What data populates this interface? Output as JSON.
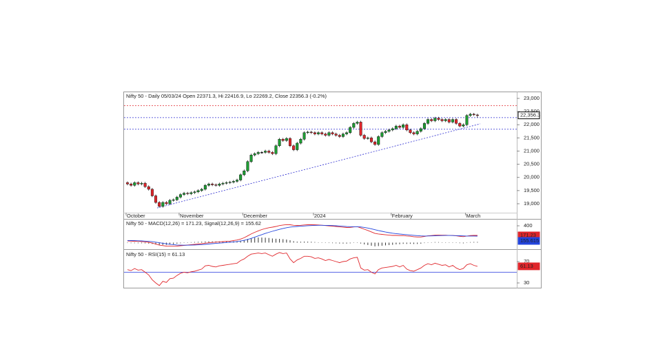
{
  "chart_data": [
    {
      "type": "candlestick",
      "title": "Nifty 50 - Daily 05/03/24 Open 22371.3, Hi 22416.9, Lo 22269.2, Close 22356.3 (-0.2%)",
      "categories": [
        "October",
        null,
        null,
        null,
        null,
        null,
        null,
        null,
        null,
        null,
        null,
        null,
        null,
        null,
        null,
        "November",
        null,
        null,
        null,
        null,
        null,
        null,
        null,
        null,
        null,
        null,
        null,
        null,
        null,
        null,
        null,
        null,
        null,
        "December",
        null,
        null,
        null,
        null,
        null,
        null,
        null,
        null,
        null,
        null,
        null,
        null,
        null,
        null,
        null,
        null,
        null,
        null,
        null,
        "2024",
        null,
        null,
        null,
        null,
        null,
        null,
        null,
        null,
        null,
        null,
        null,
        null,
        null,
        null,
        null,
        null,
        null,
        null,
        null,
        null,
        null,
        "February",
        null,
        null,
        null,
        null,
        null,
        null,
        null,
        null,
        null,
        null,
        null,
        null,
        null,
        null,
        null,
        null,
        null,
        null,
        null,
        null,
        "March",
        null,
        null,
        null
      ],
      "open": [
        19800,
        19750,
        19700,
        19800,
        19750,
        19780,
        19650,
        19550,
        19300,
        19050,
        18900,
        19050,
        19000,
        19130,
        19150,
        19250,
        19350,
        19400,
        19380,
        19420,
        19450,
        19500,
        19550,
        19700,
        19750,
        19720,
        19700,
        19750,
        19780,
        19800,
        19820,
        19850,
        19900,
        20100,
        20250,
        20600,
        20850,
        20900,
        20950,
        20950,
        21000,
        20950,
        20900,
        21200,
        21450,
        21400,
        21480,
        21200,
        21050,
        21300,
        21450,
        21700,
        21720,
        21700,
        21650,
        21700,
        21650,
        21600,
        21700,
        21650,
        21600,
        21550,
        21650,
        21700,
        21900,
        22050,
        22100,
        21600,
        21480,
        21500,
        21350,
        21250,
        21550,
        21700,
        21750,
        21800,
        21850,
        21950,
        21900,
        22000,
        21800,
        21700,
        21650,
        21750,
        21850,
        22050,
        22200,
        22150,
        22250,
        22200,
        22150,
        22200,
        22100,
        22200,
        22050,
        21950,
        22000,
        22350,
        22400,
        22371.3
      ],
      "high": [
        19850,
        19800,
        19850,
        19850,
        19830,
        19830,
        19700,
        19600,
        19350,
        19100,
        19100,
        19100,
        19180,
        19200,
        19300,
        19400,
        19450,
        19450,
        19470,
        19500,
        19550,
        19600,
        19750,
        19800,
        19800,
        19770,
        19800,
        19830,
        19850,
        19870,
        19900,
        19950,
        20150,
        20300,
        20650,
        20900,
        20950,
        21000,
        21000,
        21050,
        21050,
        21000,
        21250,
        21500,
        21500,
        21530,
        21530,
        21250,
        21350,
        21500,
        21750,
        21770,
        21770,
        21750,
        21750,
        21750,
        21700,
        21750,
        21750,
        21700,
        21650,
        21700,
        21750,
        21950,
        22100,
        22150,
        22150,
        21650,
        21550,
        21550,
        21400,
        21600,
        21750,
        21800,
        21850,
        21900,
        22000,
        22000,
        22050,
        22050,
        21850,
        21750,
        21800,
        21900,
        22100,
        22250,
        22250,
        22300,
        22300,
        22250,
        22250,
        22250,
        22250,
        22250,
        22100,
        22050,
        22400,
        22450,
        22450,
        22416.9
      ],
      "low": [
        19700,
        19650,
        19650,
        19700,
        19700,
        19600,
        19500,
        19250,
        19000,
        18850,
        18850,
        18950,
        18950,
        19080,
        19100,
        19200,
        19300,
        19330,
        19330,
        19370,
        19400,
        19450,
        19500,
        19650,
        19670,
        19650,
        19650,
        19700,
        19730,
        19750,
        19770,
        19800,
        19850,
        20050,
        20200,
        20550,
        20800,
        20850,
        20900,
        20900,
        20900,
        20850,
        20850,
        21150,
        21350,
        21350,
        21150,
        21000,
        21000,
        21250,
        21400,
        21650,
        21650,
        21600,
        21600,
        21600,
        21550,
        21550,
        21600,
        21550,
        21500,
        21500,
        21600,
        21650,
        21850,
        22000,
        21550,
        21430,
        21430,
        21300,
        21200,
        21200,
        21500,
        21650,
        21700,
        21750,
        21800,
        21850,
        21850,
        21750,
        21650,
        21600,
        21600,
        21700,
        21800,
        22000,
        22100,
        22100,
        22150,
        22100,
        22100,
        22050,
        22050,
        22000,
        21900,
        21900,
        21950,
        22300,
        22330,
        22269.2
      ],
      "close": [
        19750,
        19700,
        19800,
        19750,
        19780,
        19650,
        19550,
        19300,
        19050,
        18900,
        19050,
        19000,
        19130,
        19150,
        19250,
        19350,
        19400,
        19380,
        19420,
        19450,
        19500,
        19550,
        19700,
        19750,
        19720,
        19700,
        19750,
        19780,
        19800,
        19820,
        19850,
        19900,
        20100,
        20250,
        20600,
        20850,
        20900,
        20950,
        20950,
        21000,
        20950,
        20900,
        21200,
        21450,
        21400,
        21480,
        21200,
        21050,
        21300,
        21450,
        21700,
        21720,
        21700,
        21650,
        21700,
        21650,
        21600,
        21700,
        21650,
        21600,
        21550,
        21650,
        21700,
        21900,
        22050,
        22100,
        21600,
        21480,
        21500,
        21350,
        21250,
        21550,
        21700,
        21750,
        21800,
        21850,
        21950,
        21900,
        22000,
        21800,
        21700,
        21650,
        21750,
        21850,
        22050,
        22200,
        22150,
        22250,
        22200,
        22150,
        22200,
        22100,
        22200,
        22050,
        21950,
        22000,
        22350,
        22400,
        22380,
        22356.3
      ],
      "up_color": "#1e9c33",
      "down_color": "#e0262b",
      "ylim": [
        18660,
        23260
      ],
      "yticks": [
        {
          "value": 19000,
          "label": "19,000"
        },
        {
          "value": 19500,
          "label": "19,500"
        },
        {
          "value": 20000,
          "label": "20,000"
        },
        {
          "value": 20500,
          "label": "20,500"
        },
        {
          "value": 21000,
          "label": "21,000"
        },
        {
          "value": 21500,
          "label": "21,500"
        },
        {
          "value": 22000,
          "label": "22,000"
        },
        {
          "value": 22500,
          "label": "22,500"
        },
        {
          "value": 23000,
          "label": "23,000"
        }
      ],
      "last_label": "22,356.3",
      "levels": [
        {
          "value": 22720,
          "color": "#e0262b"
        },
        {
          "value": 22270,
          "color": "#2a2ad0"
        },
        {
          "value": 21830,
          "color": "#2a2ad0"
        }
      ],
      "trendline": {
        "x": [
          8.4,
          99.8
        ],
        "y": [
          18840,
          22034
        ],
        "color": "#2a2ad0"
      }
    },
    {
      "type": "macd",
      "title": "Nifty 50 - MACD(12,26) = 171.23, Signal(12,26,9) = 155.62",
      "series": [
        {
          "name": "MACD(12,26)",
          "color": "#e0262b",
          "values": [
            40,
            35,
            32,
            28,
            25,
            18,
            8,
            -10,
            -35,
            -60,
            -72,
            -82,
            -85,
            -86,
            -82,
            -75,
            -66,
            -58,
            -50,
            -42,
            -34,
            -26,
            -14,
            -4,
            4,
            10,
            17,
            24,
            30,
            36,
            50,
            62,
            85,
            115,
            160,
            205,
            245,
            280,
            310,
            335,
            355,
            368,
            385,
            405,
            418,
            428,
            425,
            412,
            408,
            412,
            420,
            425,
            426,
            424,
            420,
            414,
            406,
            398,
            392,
            384,
            374,
            366,
            360,
            362,
            372,
            380,
            350,
            318,
            290,
            255,
            218,
            205,
            195,
            186,
            178,
            172,
            172,
            166,
            168,
            158,
            152,
            140,
            134,
            134,
            146,
            162,
            168,
            176,
            178,
            176,
            176,
            170,
            170,
            162,
            150,
            142,
            156,
            168,
            172,
            171.23
          ]
        },
        {
          "name": "Signal(12,26,9)",
          "color": "#2244dd",
          "values": [
            50,
            48,
            46,
            43,
            40,
            36,
            30,
            22,
            10,
            -2,
            -16,
            -29,
            -40,
            -49,
            -56,
            -60,
            -62,
            -62,
            -60,
            -57,
            -53,
            -48,
            -41,
            -34,
            -26,
            -19,
            -12,
            -5,
            2,
            9,
            17,
            26,
            38,
            53,
            74,
            100,
            129,
            159,
            189,
            218,
            245,
            270,
            293,
            316,
            336,
            355,
            369,
            378,
            384,
            390,
            396,
            402,
            406,
            410,
            412,
            412,
            411,
            408,
            405,
            400,
            395,
            389,
            383,
            379,
            377,
            377,
            372,
            361,
            347,
            329,
            307,
            287,
            269,
            252,
            237,
            224,
            214,
            204,
            197,
            189,
            181,
            173,
            166,
            160,
            157,
            158,
            160,
            163,
            166,
            168,
            169,
            169,
            168,
            166,
            163,
            159,
            157,
            156,
            156,
            155.62
          ]
        }
      ],
      "histogram": [
        -10,
        -13,
        -14,
        -15,
        -15,
        -18,
        -22,
        -32,
        -45,
        -58,
        -56,
        -53,
        -45,
        -37,
        -26,
        -15,
        -4,
        4,
        10,
        15,
        19,
        22,
        27,
        30,
        30,
        29,
        29,
        29,
        28,
        27,
        33,
        36,
        47,
        62,
        86,
        105,
        116,
        121,
        121,
        117,
        110,
        98,
        92,
        89,
        82,
        73,
        56,
        34,
        24,
        22,
        24,
        23,
        20,
        14,
        8,
        2,
        -5,
        -10,
        -13,
        -16,
        -21,
        -23,
        -23,
        -17,
        -5,
        3,
        -22,
        -43,
        -57,
        -74,
        -89,
        -82,
        -74,
        -66,
        -59,
        -52,
        -42,
        -38,
        -29,
        -31,
        -29,
        -33,
        -32,
        -26,
        -11,
        4,
        8,
        13,
        12,
        8,
        7,
        1,
        2,
        -4,
        -13,
        -17,
        -1,
        12,
        16,
        16
      ],
      "histogram_color": "#333333",
      "ylim": [
        -140,
        548
      ],
      "yticks": [
        400
      ],
      "box_labels": [
        "171.23",
        "155.615"
      ]
    },
    {
      "type": "rsi",
      "title": "Nifty 50 - RSI(15) = 61.13",
      "values": [
        55,
        53,
        57,
        54,
        55,
        50,
        45,
        36,
        30,
        25,
        33,
        31,
        38,
        39,
        44,
        48,
        50,
        49,
        51,
        52,
        54,
        56,
        62,
        63,
        61,
        60,
        62,
        63,
        64,
        65,
        66,
        67,
        72,
        75,
        80,
        84,
        85,
        86,
        85,
        86,
        83,
        80,
        84,
        87,
        85,
        86,
        75,
        68,
        73,
        76,
        80,
        80,
        79,
        76,
        77,
        75,
        72,
        74,
        72,
        70,
        68,
        70,
        71,
        75,
        77,
        78,
        58,
        54,
        55,
        50,
        47,
        55,
        58,
        59,
        60,
        61,
        63,
        60,
        63,
        56,
        53,
        52,
        55,
        58,
        63,
        66,
        64,
        67,
        65,
        63,
        64,
        60,
        63,
        58,
        55,
        57,
        64,
        66,
        63,
        61.13
      ],
      "color": "#e0262b",
      "ylim": [
        21,
        92
      ],
      "yticks": [
        30,
        70
      ],
      "midline": 50,
      "midline_color": "#2233dd",
      "last_label": "61.13"
    }
  ]
}
